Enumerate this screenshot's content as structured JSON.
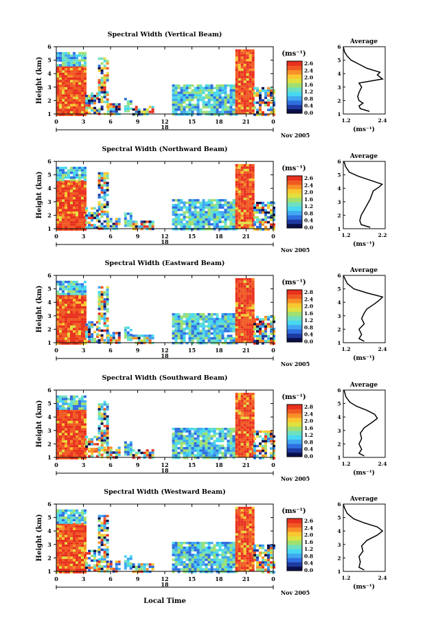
{
  "figure": {
    "xlabel_bottom": "Local Time",
    "date_label": "Nov 2005",
    "day_label": "18",
    "x_ticks": [
      "0",
      "3",
      "6",
      "9",
      "12",
      "15",
      "18",
      "21",
      "0"
    ],
    "y_ticks": [
      "1",
      "2",
      "3",
      "4",
      "5",
      "6"
    ],
    "ylabel": "Height (km)",
    "colorbar_unit": "(ms⁻¹)",
    "avg_title": "Average",
    "avg_xlabel": "(ms⁻¹)"
  },
  "chart_data": [
    {
      "type": "heatmap",
      "title": "Spectral Width (Vertical Beam)",
      "ylabel": "Height (km)",
      "ylim": [
        1,
        6
      ],
      "colorbar_ticks": [
        "2.6",
        "2.4",
        "2.0",
        "1.6",
        "1.2",
        "0.8",
        "0.4",
        "0.0"
      ],
      "colorbar_range": [
        0.0,
        2.6
      ],
      "average_profile": {
        "title": "Average",
        "xlabel": "(ms⁻¹)",
        "xticks": [
          "1.2",
          "2.4"
        ],
        "xlim": [
          1.0,
          2.6
        ],
        "ylim": [
          1,
          6
        ],
        "points": [
          [
            2.0,
            1.2
          ],
          [
            1.65,
            1.4
          ],
          [
            1.6,
            1.6
          ],
          [
            1.75,
            1.8
          ],
          [
            1.6,
            2.0
          ],
          [
            1.55,
            2.3
          ],
          [
            1.6,
            2.6
          ],
          [
            1.7,
            3.0
          ],
          [
            1.6,
            3.3
          ],
          [
            2.5,
            3.6
          ],
          [
            2.3,
            3.9
          ],
          [
            2.4,
            4.1
          ],
          [
            1.9,
            4.4
          ],
          [
            1.6,
            4.7
          ],
          [
            1.3,
            5.0
          ],
          [
            1.15,
            5.3
          ],
          [
            1.05,
            5.6
          ],
          [
            1.0,
            6.0
          ]
        ]
      }
    },
    {
      "type": "heatmap",
      "title": "Spectral Width (Northward Beam)",
      "ylabel": "Height (km)",
      "ylim": [
        1,
        6
      ],
      "colorbar_ticks": [
        "2.6",
        "2.4",
        "2.0",
        "1.6",
        "1.2",
        "0.8",
        "0.4",
        "0.0"
      ],
      "colorbar_range": [
        0.0,
        2.6
      ],
      "average_profile": {
        "title": "Average",
        "xlabel": "(ms⁻¹)",
        "xticks": [
          "1.2",
          "2.2"
        ],
        "xlim": [
          1.0,
          2.4
        ],
        "ylim": [
          1,
          6
        ],
        "points": [
          [
            1.9,
            1.1
          ],
          [
            1.6,
            1.3
          ],
          [
            1.55,
            1.6
          ],
          [
            1.6,
            2.0
          ],
          [
            1.7,
            2.4
          ],
          [
            1.8,
            2.8
          ],
          [
            1.9,
            3.2
          ],
          [
            1.95,
            3.5
          ],
          [
            2.0,
            3.8
          ],
          [
            2.2,
            4.1
          ],
          [
            2.3,
            4.3
          ],
          [
            1.9,
            4.6
          ],
          [
            1.5,
            4.9
          ],
          [
            1.2,
            5.2
          ],
          [
            1.08,
            5.6
          ],
          [
            1.02,
            6.0
          ]
        ]
      }
    },
    {
      "type": "heatmap",
      "title": "Spectral Width (Eastward Beam)",
      "ylabel": "Height (km)",
      "ylim": [
        1,
        6
      ],
      "colorbar_ticks": [
        "2.8",
        "2.4",
        "2.0",
        "1.6",
        "1.2",
        "0.8",
        "0.4",
        "0.0"
      ],
      "colorbar_range": [
        0.0,
        2.8
      ],
      "average_profile": {
        "title": "Average",
        "xlabel": "(ms⁻¹)",
        "xticks": [
          "1.2",
          "2.4"
        ],
        "xlim": [
          1.0,
          2.6
        ],
        "ylim": [
          1,
          6
        ],
        "points": [
          [
            1.8,
            1.1
          ],
          [
            1.6,
            1.3
          ],
          [
            1.7,
            1.6
          ],
          [
            1.6,
            2.0
          ],
          [
            1.8,
            2.4
          ],
          [
            1.7,
            2.8
          ],
          [
            1.8,
            3.2
          ],
          [
            1.9,
            3.5
          ],
          [
            2.2,
            3.9
          ],
          [
            2.4,
            4.2
          ],
          [
            2.5,
            4.4
          ],
          [
            1.9,
            4.7
          ],
          [
            1.4,
            5.0
          ],
          [
            1.15,
            5.4
          ],
          [
            1.05,
            5.8
          ],
          [
            1.0,
            6.0
          ]
        ]
      }
    },
    {
      "type": "heatmap",
      "title": "Spectral Width (Southward Beam)",
      "ylabel": "Height (km)",
      "ylim": [
        1,
        6
      ],
      "colorbar_ticks": [
        "2.8",
        "2.4",
        "2.0",
        "1.6",
        "1.2",
        "0.8",
        "0.4",
        "0.0"
      ],
      "colorbar_range": [
        0.0,
        2.8
      ],
      "average_profile": {
        "title": "Average",
        "xlabel": "(ms⁻¹)",
        "xticks": [
          "1.2",
          "2.4"
        ],
        "xlim": [
          1.0,
          2.6
        ],
        "ylim": [
          1,
          6
        ],
        "points": [
          [
            1.8,
            1.1
          ],
          [
            1.6,
            1.3
          ],
          [
            1.7,
            1.6
          ],
          [
            1.6,
            2.0
          ],
          [
            1.7,
            2.4
          ],
          [
            1.65,
            2.8
          ],
          [
            1.8,
            3.2
          ],
          [
            2.1,
            3.6
          ],
          [
            2.3,
            3.9
          ],
          [
            2.2,
            4.2
          ],
          [
            1.9,
            4.5
          ],
          [
            1.5,
            4.8
          ],
          [
            1.25,
            5.1
          ],
          [
            1.1,
            5.5
          ],
          [
            1.03,
            6.0
          ]
        ]
      }
    },
    {
      "type": "heatmap",
      "title": "Spectral Width (Westward Beam)",
      "ylabel": "Height (km)",
      "ylim": [
        1,
        6
      ],
      "colorbar_ticks": [
        "2.6",
        "2.4",
        "2.0",
        "1.6",
        "1.2",
        "0.8",
        "0.4",
        "0.0"
      ],
      "colorbar_range": [
        0.0,
        2.6
      ],
      "average_profile": {
        "title": "Average",
        "xlabel": "(ms⁻¹)",
        "xticks": [
          "1.2",
          "2.4"
        ],
        "xlim": [
          1.0,
          2.6
        ],
        "ylim": [
          1,
          6
        ],
        "points": [
          [
            1.8,
            1.1
          ],
          [
            1.6,
            1.3
          ],
          [
            1.65,
            1.7
          ],
          [
            1.6,
            2.1
          ],
          [
            1.75,
            2.5
          ],
          [
            1.7,
            2.9
          ],
          [
            1.9,
            3.3
          ],
          [
            2.3,
            3.7
          ],
          [
            2.5,
            4.0
          ],
          [
            2.3,
            4.3
          ],
          [
            1.8,
            4.6
          ],
          [
            1.4,
            4.9
          ],
          [
            1.15,
            5.3
          ],
          [
            1.05,
            5.7
          ],
          [
            1.0,
            6.0
          ]
        ]
      }
    }
  ],
  "heatmap_regions": [
    {
      "t0": 0.0,
      "t1": 3.2,
      "h0": 1.0,
      "h1": 4.6,
      "level": "high"
    },
    {
      "t0": 0.0,
      "t1": 3.2,
      "h0": 4.6,
      "h1": 5.6,
      "level": "low"
    },
    {
      "t0": 3.2,
      "t1": 4.6,
      "h0": 1.0,
      "h1": 2.6,
      "level": "mixed"
    },
    {
      "t0": 4.6,
      "t1": 5.6,
      "h0": 1.0,
      "h1": 5.2,
      "level": "mixed"
    },
    {
      "t0": 5.6,
      "t1": 7.0,
      "h0": 1.0,
      "h1": 1.8,
      "level": "mixed"
    },
    {
      "t0": 7.5,
      "t1": 8.2,
      "h0": 1.2,
      "h1": 2.2,
      "level": "low"
    },
    {
      "t0": 8.4,
      "t1": 10.8,
      "h0": 1.0,
      "h1": 1.6,
      "level": "mixed"
    },
    {
      "t0": 12.8,
      "t1": 19.8,
      "h0": 1.0,
      "h1": 3.2,
      "level": "low"
    },
    {
      "t0": 19.8,
      "t1": 21.8,
      "h0": 1.0,
      "h1": 5.8,
      "level": "high"
    },
    {
      "t0": 21.8,
      "t1": 24.0,
      "h0": 1.0,
      "h1": 3.0,
      "level": "mixed"
    }
  ],
  "colors": {
    "high": "#ee3a22",
    "mid": "#f8d42a",
    "cyan": "#48c8e8",
    "blue": "#1e6ad8",
    "green": "#7ed05a",
    "dark": "#2a2a60"
  }
}
